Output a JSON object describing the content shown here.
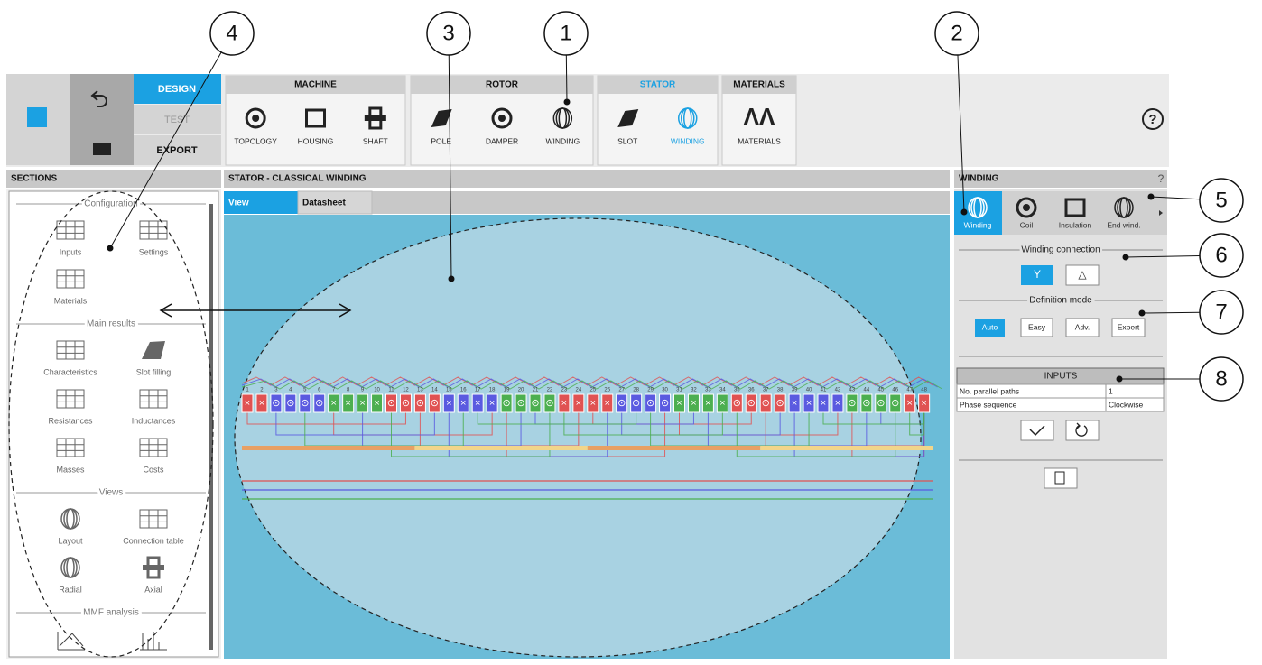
{
  "callouts": [
    "1",
    "2",
    "3",
    "4",
    "5",
    "6",
    "7",
    "8"
  ],
  "toolbar": {
    "modes": [
      "DESIGN",
      "TEST",
      "EXPORT"
    ],
    "groups": [
      {
        "title": "MACHINE",
        "items": [
          "TOPOLOGY",
          "HOUSING",
          "SHAFT"
        ]
      },
      {
        "title": "ROTOR",
        "items": [
          "POLE",
          "DAMPER",
          "WINDING"
        ]
      },
      {
        "title": "STATOR",
        "items": [
          "SLOT",
          "WINDING"
        ]
      },
      {
        "title": "MATERIALS",
        "items": [
          "MATERIALS"
        ]
      }
    ],
    "help": "?"
  },
  "sections": {
    "title": "SECTIONS",
    "groups": [
      {
        "title": "Configuration",
        "items": [
          "Inputs",
          "Settings",
          "Materials"
        ]
      },
      {
        "title": "Main results",
        "items": [
          "Characteristics",
          "Slot filling",
          "Resistances",
          "Inductances",
          "Masses",
          "Costs"
        ]
      },
      {
        "title": "Views",
        "items": [
          "Layout",
          "Connection table",
          "Radial",
          "Axial"
        ]
      },
      {
        "title": "MMF analysis",
        "items": []
      }
    ]
  },
  "main": {
    "title": "STATOR - CLASSICAL WINDING",
    "tabs": [
      "View",
      "Datasheet"
    ],
    "slots": {
      "numbers": [
        "1",
        "2",
        "3",
        "4",
        "5",
        "6",
        "7",
        "8",
        "9",
        "10",
        "11",
        "12",
        "13",
        "14",
        "15",
        "16",
        "17",
        "18",
        "19",
        "20",
        "21",
        "22",
        "23",
        "24",
        "25",
        "26",
        "27",
        "28",
        "29",
        "30",
        "31",
        "32",
        "33",
        "34",
        "35",
        "36",
        "37",
        "38",
        "39",
        "40",
        "41",
        "42",
        "43",
        "44",
        "45",
        "46",
        "47",
        "48"
      ],
      "symbols": [
        "×",
        "×",
        "⊙",
        "⊙",
        "⊙",
        "⊙",
        "×",
        "×",
        "×",
        "×",
        "⊙",
        "⊙",
        "⊙",
        "⊙",
        "×",
        "×",
        "×",
        "×",
        "⊙",
        "⊙",
        "⊙",
        "⊙",
        "×",
        "×",
        "×",
        "×",
        "⊙",
        "⊙",
        "⊙",
        "⊙",
        "×",
        "×",
        "×",
        "×",
        "⊙",
        "⊙",
        "⊙",
        "⊙",
        "×",
        "×",
        "×",
        "×",
        "⊙",
        "⊙",
        "⊙",
        "⊙",
        "×",
        "×"
      ],
      "colors": [
        "#e05252",
        "#e05252",
        "#5a5ae0",
        "#5a5ae0",
        "#5a5ae0",
        "#5a5ae0",
        "#4caf50",
        "#4caf50",
        "#4caf50",
        "#4caf50",
        "#e05252",
        "#e05252",
        "#e05252",
        "#e05252",
        "#5a5ae0",
        "#5a5ae0",
        "#5a5ae0",
        "#5a5ae0",
        "#4caf50",
        "#4caf50",
        "#4caf50",
        "#4caf50",
        "#e05252",
        "#e05252",
        "#e05252",
        "#e05252",
        "#5a5ae0",
        "#5a5ae0",
        "#5a5ae0",
        "#5a5ae0",
        "#4caf50",
        "#4caf50",
        "#4caf50",
        "#4caf50",
        "#e05252",
        "#e05252",
        "#e05252",
        "#e05252",
        "#5a5ae0",
        "#5a5ae0",
        "#5a5ae0",
        "#5a5ae0",
        "#4caf50",
        "#4caf50",
        "#4caf50",
        "#4caf50",
        "#e05252",
        "#e05252"
      ]
    }
  },
  "winding_panel": {
    "title": "WINDING",
    "help": "?",
    "tabs": [
      "Winding",
      "Coil",
      "Insulation",
      "End wind."
    ],
    "connection_title": "Winding connection",
    "connection_options": [
      "Y",
      "△"
    ],
    "definition_title": "Definition mode",
    "modes": [
      "Auto",
      "Easy",
      "Adv.",
      "Expert"
    ],
    "inputs": {
      "title": "INPUTS",
      "rows": [
        [
          "No. parallel paths",
          "1"
        ],
        [
          "Phase sequence",
          "Clockwise"
        ]
      ]
    }
  }
}
